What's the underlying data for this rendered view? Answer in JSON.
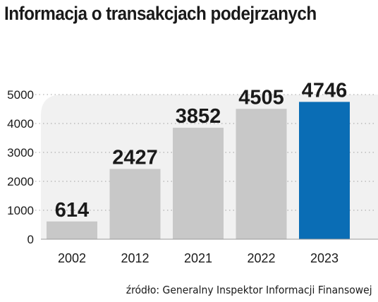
{
  "title": "Informacja o transakcjach podejrzanych",
  "source": "źródło: Generalny Inspektor Informacji Finansowej",
  "chart_data": {
    "type": "bar",
    "categories": [
      "2002",
      "2012",
      "2021",
      "2022",
      "2023"
    ],
    "values": [
      614,
      2427,
      3852,
      4505,
      4746
    ],
    "data_labels": [
      "614",
      "2427",
      "3852",
      "4505",
      "4746"
    ],
    "y_ticks": [
      0,
      1000,
      2000,
      3000,
      4000,
      5000
    ],
    "ylim": [
      0,
      5000
    ],
    "grid": "dotted horizontal",
    "legend": "none",
    "colors": {
      "bar": "#c8c8c8",
      "highlight_bar": "#0a6db5",
      "panel": "#f1f1f1",
      "text": "#1a1a1a"
    },
    "highlight_index": 4
  }
}
